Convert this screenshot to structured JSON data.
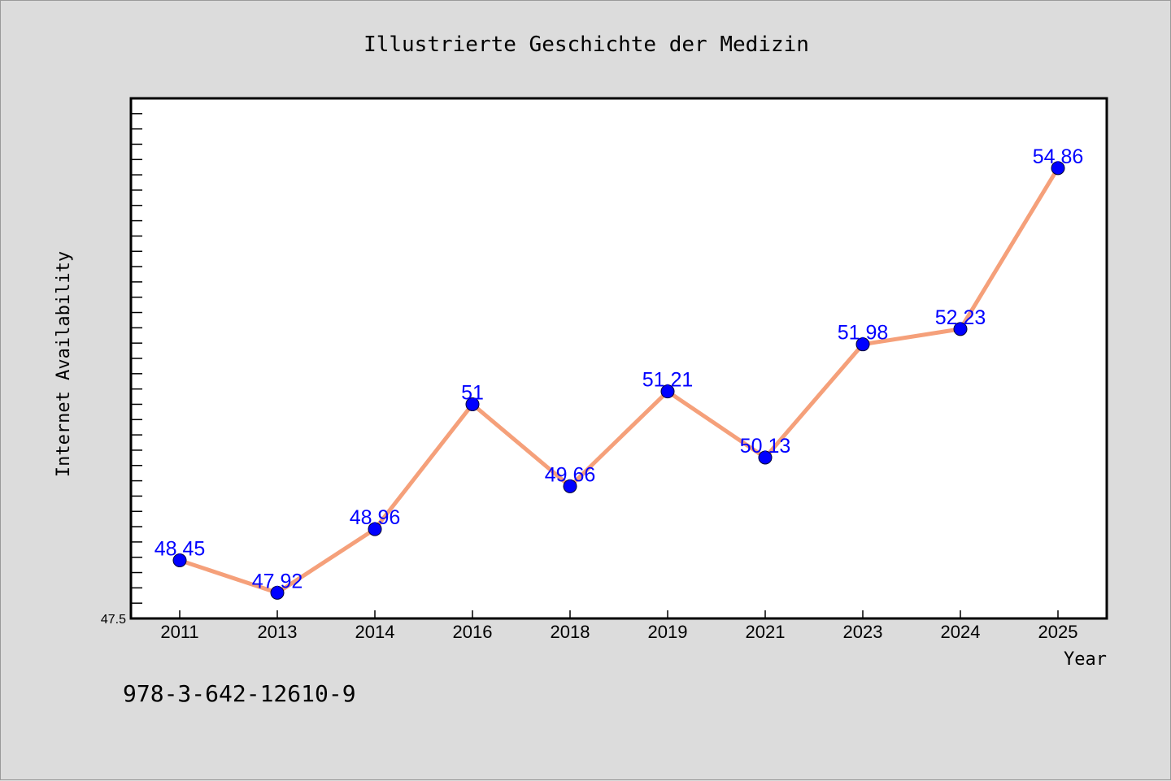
{
  "chart_data": {
    "type": "line",
    "title": "Illustrierte Geschichte der Medizin",
    "xlabel": "Year",
    "ylabel": "Internet Availability",
    "categories": [
      "2011",
      "2013",
      "2014",
      "2016",
      "2018",
      "2019",
      "2021",
      "2023",
      "2024",
      "2025"
    ],
    "series": [
      {
        "values": [
          48.45,
          47.92,
          48.96,
          51,
          49.66,
          51.21,
          50.13,
          51.98,
          52.23,
          54.86
        ],
        "labels": [
          "48.45",
          "47.92",
          "48.96",
          "51",
          "49.66",
          "51.21",
          "50.13",
          "51.98",
          "52.23",
          "54.86"
        ]
      }
    ],
    "ylim": [
      47.5,
      56.0
    ],
    "y_tick_label": "47.5",
    "grid": false,
    "line_color": "#f5a07a",
    "marker_color": "#0000ff",
    "label_color": "#0000ff"
  },
  "footer": {
    "isbn": "978-3-642-12610-9"
  }
}
